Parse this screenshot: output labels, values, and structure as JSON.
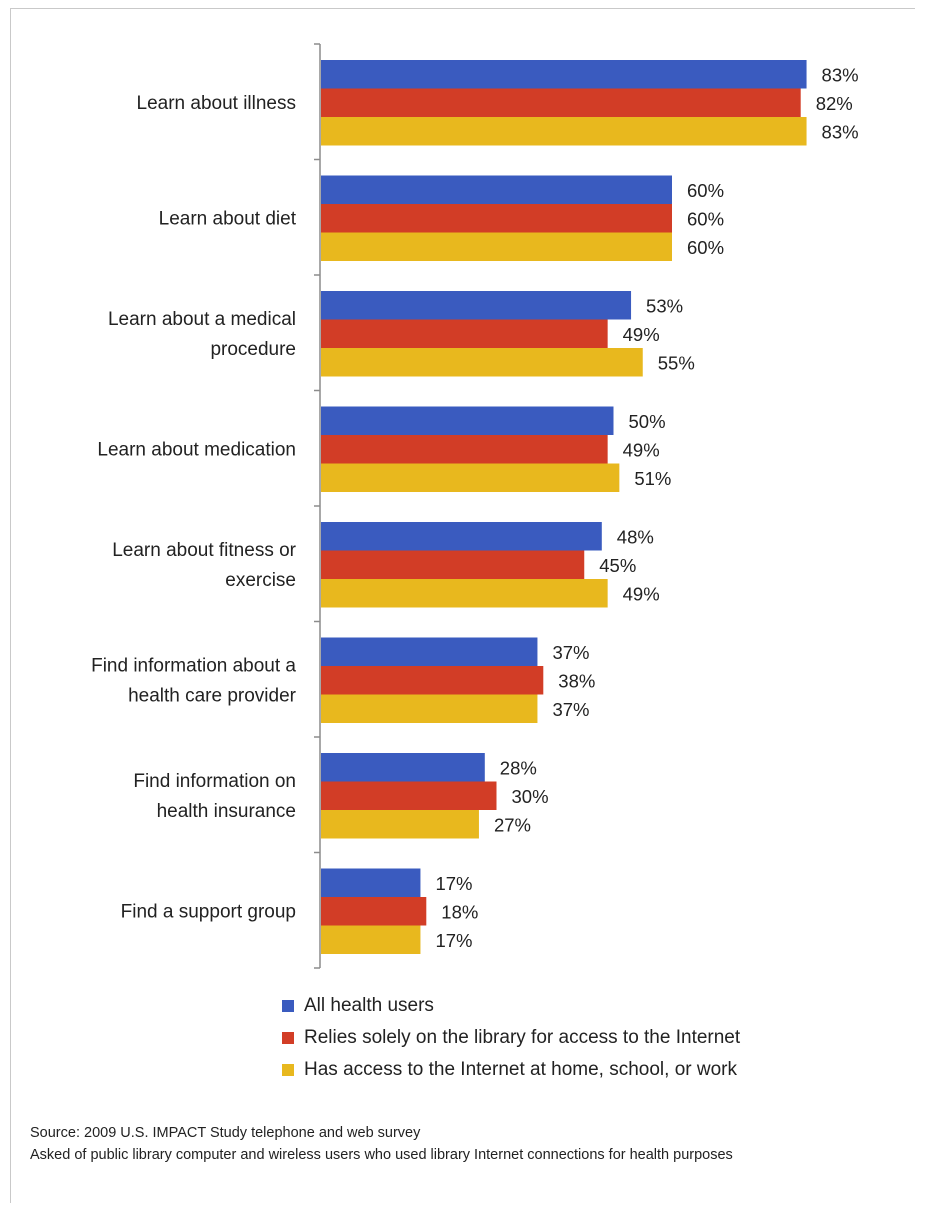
{
  "chart_data": {
    "type": "bar",
    "orientation": "horizontal",
    "categories": [
      [
        "Learn about illness"
      ],
      [
        "Learn about diet"
      ],
      [
        "Learn about a medical",
        "procedure"
      ],
      [
        "Learn about medication"
      ],
      [
        "Learn about fitness or",
        "exercise"
      ],
      [
        "Find information  about a",
        "health care provider"
      ],
      [
        "Find information  on",
        "health insurance"
      ],
      [
        "Find a  support group"
      ]
    ],
    "series": [
      {
        "name": "All health users",
        "color": "#3a5bbf",
        "values": [
          83,
          60,
          53,
          50,
          48,
          37,
          28,
          17
        ],
        "labels": [
          "83%",
          "60%",
          "53%",
          "50%",
          "48%",
          "37%",
          "28%",
          "17%"
        ]
      },
      {
        "name": "Relies solely on the library for access to the Internet",
        "color": "#d23d26",
        "values": [
          82,
          60,
          49,
          49,
          45,
          38,
          30,
          18
        ],
        "labels": [
          "82%",
          "60%",
          "49%",
          "49%",
          "45%",
          "38%",
          "30%",
          "18%"
        ]
      },
      {
        "name": "Has access to the Internet at home, school, or work",
        "color": "#e8b81e",
        "values": [
          83,
          60,
          55,
          51,
          49,
          37,
          27,
          17
        ],
        "labels": [
          "83%",
          "60%",
          "55%",
          "51%",
          "49%",
          "37%",
          "27%",
          "17%"
        ]
      }
    ],
    "xlim": [
      0,
      100
    ],
    "grid": false,
    "legend_position": "bottom"
  },
  "notes": {
    "source": "Source: 2009 U.S. IMPACT Study telephone and web survey",
    "asked": "Asked of public library computer and wireless users who used library Internet connections for health purposes"
  }
}
